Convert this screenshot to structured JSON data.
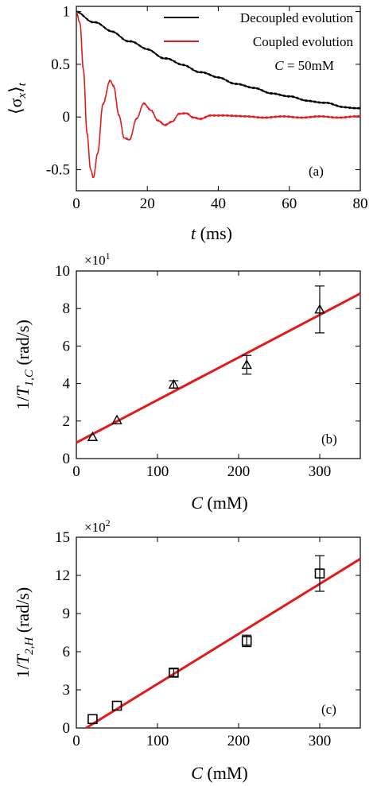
{
  "colors": {
    "decoupled": "#000000",
    "coupled": "#e31a1c",
    "fit": "#e31a1c",
    "axis": "#000000"
  },
  "panels": {
    "a": {
      "label": "(a)",
      "ylabel": "⟨σ",
      "ylabel_sub": "x",
      "ylabel_tail": "⟩",
      "ylabel_subt": "t",
      "xlabel_var": "t",
      "xlabel_unit": " (ms)",
      "legend_decoupled": "Decoupled evolution",
      "legend_coupled": "Coupled evolution",
      "annotation_var": "C",
      "annotation_val": " = 50mM"
    },
    "b": {
      "label": "(b)",
      "multiplier_base": "×10",
      "multiplier_exp": "1",
      "ylabel_pre": "1/",
      "ylabel_var": "T",
      "ylabel_sub": "1,C",
      "ylabel_unit": " (rad/s)",
      "xlabel_var": "C",
      "xlabel_unit": " (mM)"
    },
    "c": {
      "label": "(c)",
      "multiplier_base": "×10",
      "multiplier_exp": "2",
      "ylabel_pre": "1/",
      "ylabel_var": "T",
      "ylabel_sub": "2,H",
      "ylabel_unit": " (rad/s)",
      "xlabel_var": "C",
      "xlabel_unit": " (mM)"
    }
  },
  "chart_data": [
    {
      "type": "line",
      "panel": "(a)",
      "xlabel": "t (ms)",
      "ylabel": "⟨σx⟩t",
      "xlim": [
        0,
        80
      ],
      "ylim": [
        -0.7,
        1.05
      ],
      "xticks": [
        0,
        20,
        40,
        60,
        80
      ],
      "yticks": [
        1,
        0.5,
        0,
        -0.5
      ],
      "ytick_labels": [
        "1",
        "0.5",
        "0",
        "-0.5"
      ],
      "legend_position": "top-right",
      "series": [
        {
          "name": "Decoupled evolution",
          "x": [
            0,
            5,
            10,
            15,
            20,
            25,
            30,
            35,
            40,
            45,
            50,
            55,
            60,
            65,
            70,
            75,
            80
          ],
          "y": [
            1.0,
            0.9,
            0.81,
            0.72,
            0.64,
            0.56,
            0.49,
            0.43,
            0.37,
            0.32,
            0.27,
            0.23,
            0.19,
            0.16,
            0.13,
            0.1,
            0.08
          ]
        },
        {
          "name": "Coupled evolution",
          "x": [
            0,
            1,
            2,
            3,
            4,
            4.8,
            6,
            7.5,
            9.5,
            10.5,
            12,
            13.5,
            15,
            17,
            19,
            21,
            23,
            25,
            27,
            29,
            31,
            33,
            35,
            38,
            42,
            48,
            55,
            65,
            80
          ],
          "y": [
            1.0,
            0.9,
            0.45,
            -0.15,
            -0.5,
            -0.58,
            -0.35,
            0.12,
            0.35,
            0.3,
            0.02,
            -0.2,
            -0.22,
            -0.02,
            0.13,
            0.07,
            -0.03,
            -0.08,
            -0.05,
            0.03,
            0.04,
            0.0,
            -0.02,
            0.01,
            0.02,
            0.0,
            0.0,
            0.0,
            0.0
          ]
        }
      ]
    },
    {
      "type": "scatter",
      "panel": "(b)",
      "xlabel": "C (mM)",
      "ylabel": "1/T1,C (rad/s)",
      "xlim": [
        0,
        350
      ],
      "ylim": [
        0,
        10
      ],
      "xticks": [
        0,
        100,
        200,
        300
      ],
      "yticks": [
        0,
        2,
        4,
        6,
        8,
        10
      ],
      "y_multiplier": "×10^1",
      "marker": "triangle",
      "series": [
        {
          "x": [
            20,
            50,
            120,
            210,
            300
          ],
          "y": [
            1.15,
            2.05,
            3.95,
            5.0,
            7.95
          ],
          "err": [
            0.15,
            0.15,
            0.2,
            0.5,
            1.25
          ]
        }
      ],
      "fit": {
        "x": [
          0,
          350
        ],
        "y": [
          0.85,
          8.8
        ]
      }
    },
    {
      "type": "scatter",
      "panel": "(c)",
      "xlabel": "C (mM)",
      "ylabel": "1/T2,H (rad/s)",
      "xlim": [
        0,
        350
      ],
      "ylim": [
        0,
        15
      ],
      "xticks": [
        0,
        100,
        200,
        300
      ],
      "yticks": [
        0,
        3,
        6,
        9,
        12,
        15
      ],
      "y_multiplier": "×10^2",
      "marker": "square",
      "series": [
        {
          "x": [
            20,
            50,
            120,
            210,
            300
          ],
          "y": [
            0.7,
            1.75,
            4.35,
            6.85,
            12.15
          ],
          "err": [
            0.25,
            0.25,
            0.3,
            0.45,
            1.4
          ]
        }
      ],
      "fit": {
        "x": [
          12,
          350
        ],
        "y": [
          0,
          13.3
        ]
      }
    }
  ]
}
